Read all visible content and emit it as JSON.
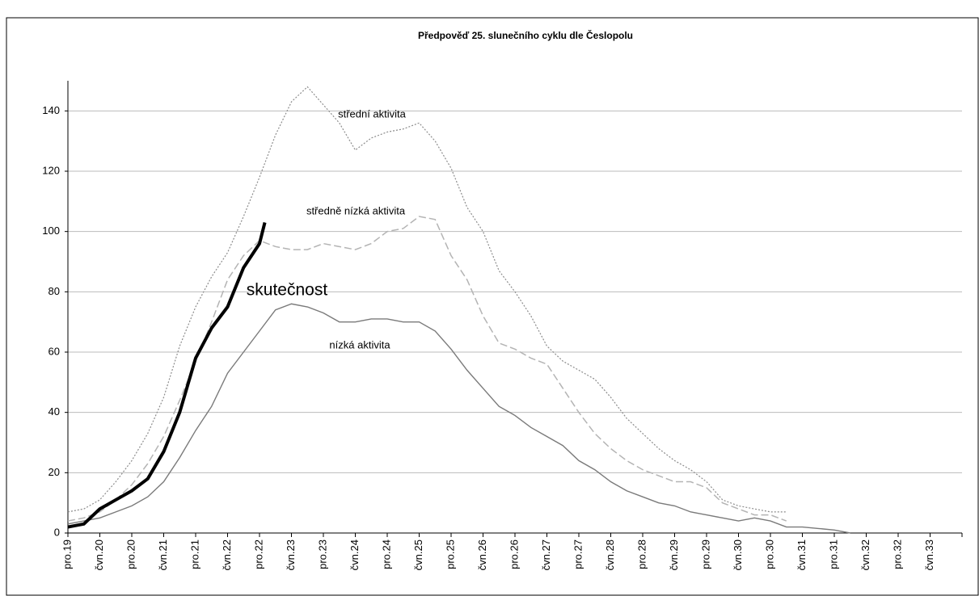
{
  "chart_data": {
    "type": "line",
    "title": "Předpověď 25. slunečního cyklu dle Česlopolu",
    "xlim": [
      0,
      168
    ],
    "xticks": [
      {
        "value": 0,
        "label": "pro.19"
      },
      {
        "value": 6,
        "label": "čvn.20"
      },
      {
        "value": 12,
        "label": "pro.20"
      },
      {
        "value": 18,
        "label": "čvn.21"
      },
      {
        "value": 24,
        "label": "pro.21"
      },
      {
        "value": 30,
        "label": "čvn.22"
      },
      {
        "value": 36,
        "label": "pro.22"
      },
      {
        "value": 42,
        "label": "čvn.23"
      },
      {
        "value": 48,
        "label": "pro.23"
      },
      {
        "value": 54,
        "label": "čvn.24"
      },
      {
        "value": 60,
        "label": "pro.24"
      },
      {
        "value": 66,
        "label": "čvn.25"
      },
      {
        "value": 72,
        "label": "pro.25"
      },
      {
        "value": 78,
        "label": "čvn.26"
      },
      {
        "value": 84,
        "label": "pro.26"
      },
      {
        "value": 90,
        "label": "čvn.27"
      },
      {
        "value": 96,
        "label": "pro.27"
      },
      {
        "value": 102,
        "label": "čvn.28"
      },
      {
        "value": 108,
        "label": "pro.28"
      },
      {
        "value": 114,
        "label": "čvn.29"
      },
      {
        "value": 120,
        "label": "pro.29"
      },
      {
        "value": 126,
        "label": "čvn.30"
      },
      {
        "value": 132,
        "label": "pro.30"
      },
      {
        "value": 138,
        "label": "čvn.31"
      },
      {
        "value": 144,
        "label": "pro.31"
      },
      {
        "value": 150,
        "label": "čvn.32"
      },
      {
        "value": 156,
        "label": "pro.32"
      },
      {
        "value": 162,
        "label": "čvn.33"
      }
    ],
    "ylim": [
      0,
      150
    ],
    "yticks": [
      0,
      20,
      40,
      60,
      80,
      100,
      120,
      140
    ],
    "grid": true,
    "series": [
      {
        "color": "#8c8c8c",
        "line_style": "dotted",
        "x": [
          0,
          3,
          6,
          9,
          12,
          15,
          18,
          21,
          24,
          27,
          30,
          33,
          36,
          39,
          42,
          45,
          48,
          51,
          54,
          57,
          60,
          63,
          66,
          69,
          72,
          75,
          78,
          81,
          84,
          87,
          90,
          93,
          96,
          99,
          102,
          105,
          108,
          111,
          114,
          117,
          120,
          123,
          126,
          129,
          132,
          135
        ],
        "values": [
          7,
          8,
          11,
          17,
          24,
          33,
          45,
          62,
          75,
          85,
          93,
          105,
          118,
          132,
          143,
          148,
          142,
          136,
          127,
          131,
          133,
          134,
          136,
          130,
          121,
          108,
          100,
          87,
          80,
          72,
          62,
          57,
          54,
          51,
          45,
          38,
          33,
          28,
          24,
          21,
          17,
          11,
          9,
          8,
          7,
          7
        ]
      },
      {
        "color": "#b4b4b4",
        "line_style": "dashed",
        "x": [
          0,
          3,
          6,
          9,
          12,
          15,
          18,
          21,
          24,
          27,
          30,
          33,
          36,
          39,
          42,
          45,
          48,
          51,
          54,
          57,
          60,
          63,
          66,
          69,
          72,
          75,
          78,
          81,
          84,
          87,
          90,
          93,
          96,
          99,
          102,
          105,
          108,
          111,
          114,
          117,
          120,
          123,
          126,
          129,
          132,
          135
        ],
        "values": [
          4,
          5,
          7,
          11,
          16,
          23,
          32,
          44,
          57,
          70,
          84,
          92,
          97,
          95,
          94,
          94,
          96,
          95,
          94,
          96,
          100,
          101,
          105,
          104,
          92,
          84,
          72,
          63,
          61,
          58,
          56,
          48,
          40,
          33,
          28,
          24,
          21,
          19,
          17,
          17,
          15,
          10,
          8,
          6,
          6,
          4
        ]
      },
      {
        "color": "#7a7a7a",
        "line_style": "solid",
        "x": [
          0,
          3,
          6,
          9,
          12,
          15,
          18,
          21,
          24,
          27,
          30,
          33,
          36,
          39,
          42,
          45,
          48,
          51,
          54,
          57,
          60,
          63,
          66,
          69,
          72,
          75,
          78,
          81,
          84,
          87,
          90,
          93,
          96,
          99,
          102,
          105,
          108,
          111,
          114,
          117,
          120,
          123,
          126,
          129,
          132,
          135,
          138,
          141,
          144,
          147
        ],
        "values": [
          3,
          4,
          5,
          7,
          9,
          12,
          17,
          25,
          34,
          42,
          53,
          60,
          67,
          74,
          76,
          75,
          73,
          70,
          70,
          71,
          71,
          70,
          70,
          67,
          61,
          54,
          48,
          42,
          39,
          35,
          32,
          29,
          24,
          21,
          17,
          14,
          12,
          10,
          9,
          7,
          6,
          5,
          4,
          5,
          4,
          2,
          2,
          1.5,
          1,
          0
        ]
      },
      {
        "color": "#000000",
        "line_style": "thick",
        "x": [
          0,
          3,
          6,
          9,
          12,
          15,
          18,
          21,
          24,
          27,
          30,
          33,
          36,
          37
        ],
        "values": [
          2,
          3,
          8,
          11,
          14,
          18,
          27,
          40,
          58,
          68,
          75,
          88,
          96,
          103
        ]
      }
    ],
    "annotations": [
      "střední aktivita",
      "středně nízká aktivita",
      "skutečnost",
      "nízká aktivita"
    ]
  }
}
